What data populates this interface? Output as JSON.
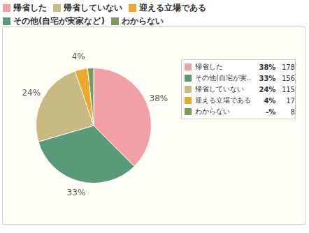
{
  "chart_data": {
    "type": "pie",
    "categories": [
      "帰省した",
      "その他(自宅が実家など)",
      "帰省していない",
      "迎える立場である",
      "わからない"
    ],
    "values": [
      178,
      156,
      115,
      17,
      8
    ],
    "colors": [
      "#f2a0a3",
      "#5a9a78",
      "#c9b983",
      "#e8a92c",
      "#7d9a5b"
    ],
    "percent_values": [
      38,
      33,
      24,
      4,
      null
    ],
    "percent_labels": [
      "38%",
      "33%",
      "24%",
      "4%",
      "-%"
    ],
    "data_labels": true,
    "legend": "top",
    "legend_order": [
      "帰省した",
      "帰省していない",
      "迎える立場である",
      "その他(自宅が実家など)",
      "わからない"
    ],
    "legend_box_labels": [
      "帰省した",
      "その他(自宅が実...",
      "帰省していない",
      "迎える立場である",
      "わからない"
    ]
  }
}
